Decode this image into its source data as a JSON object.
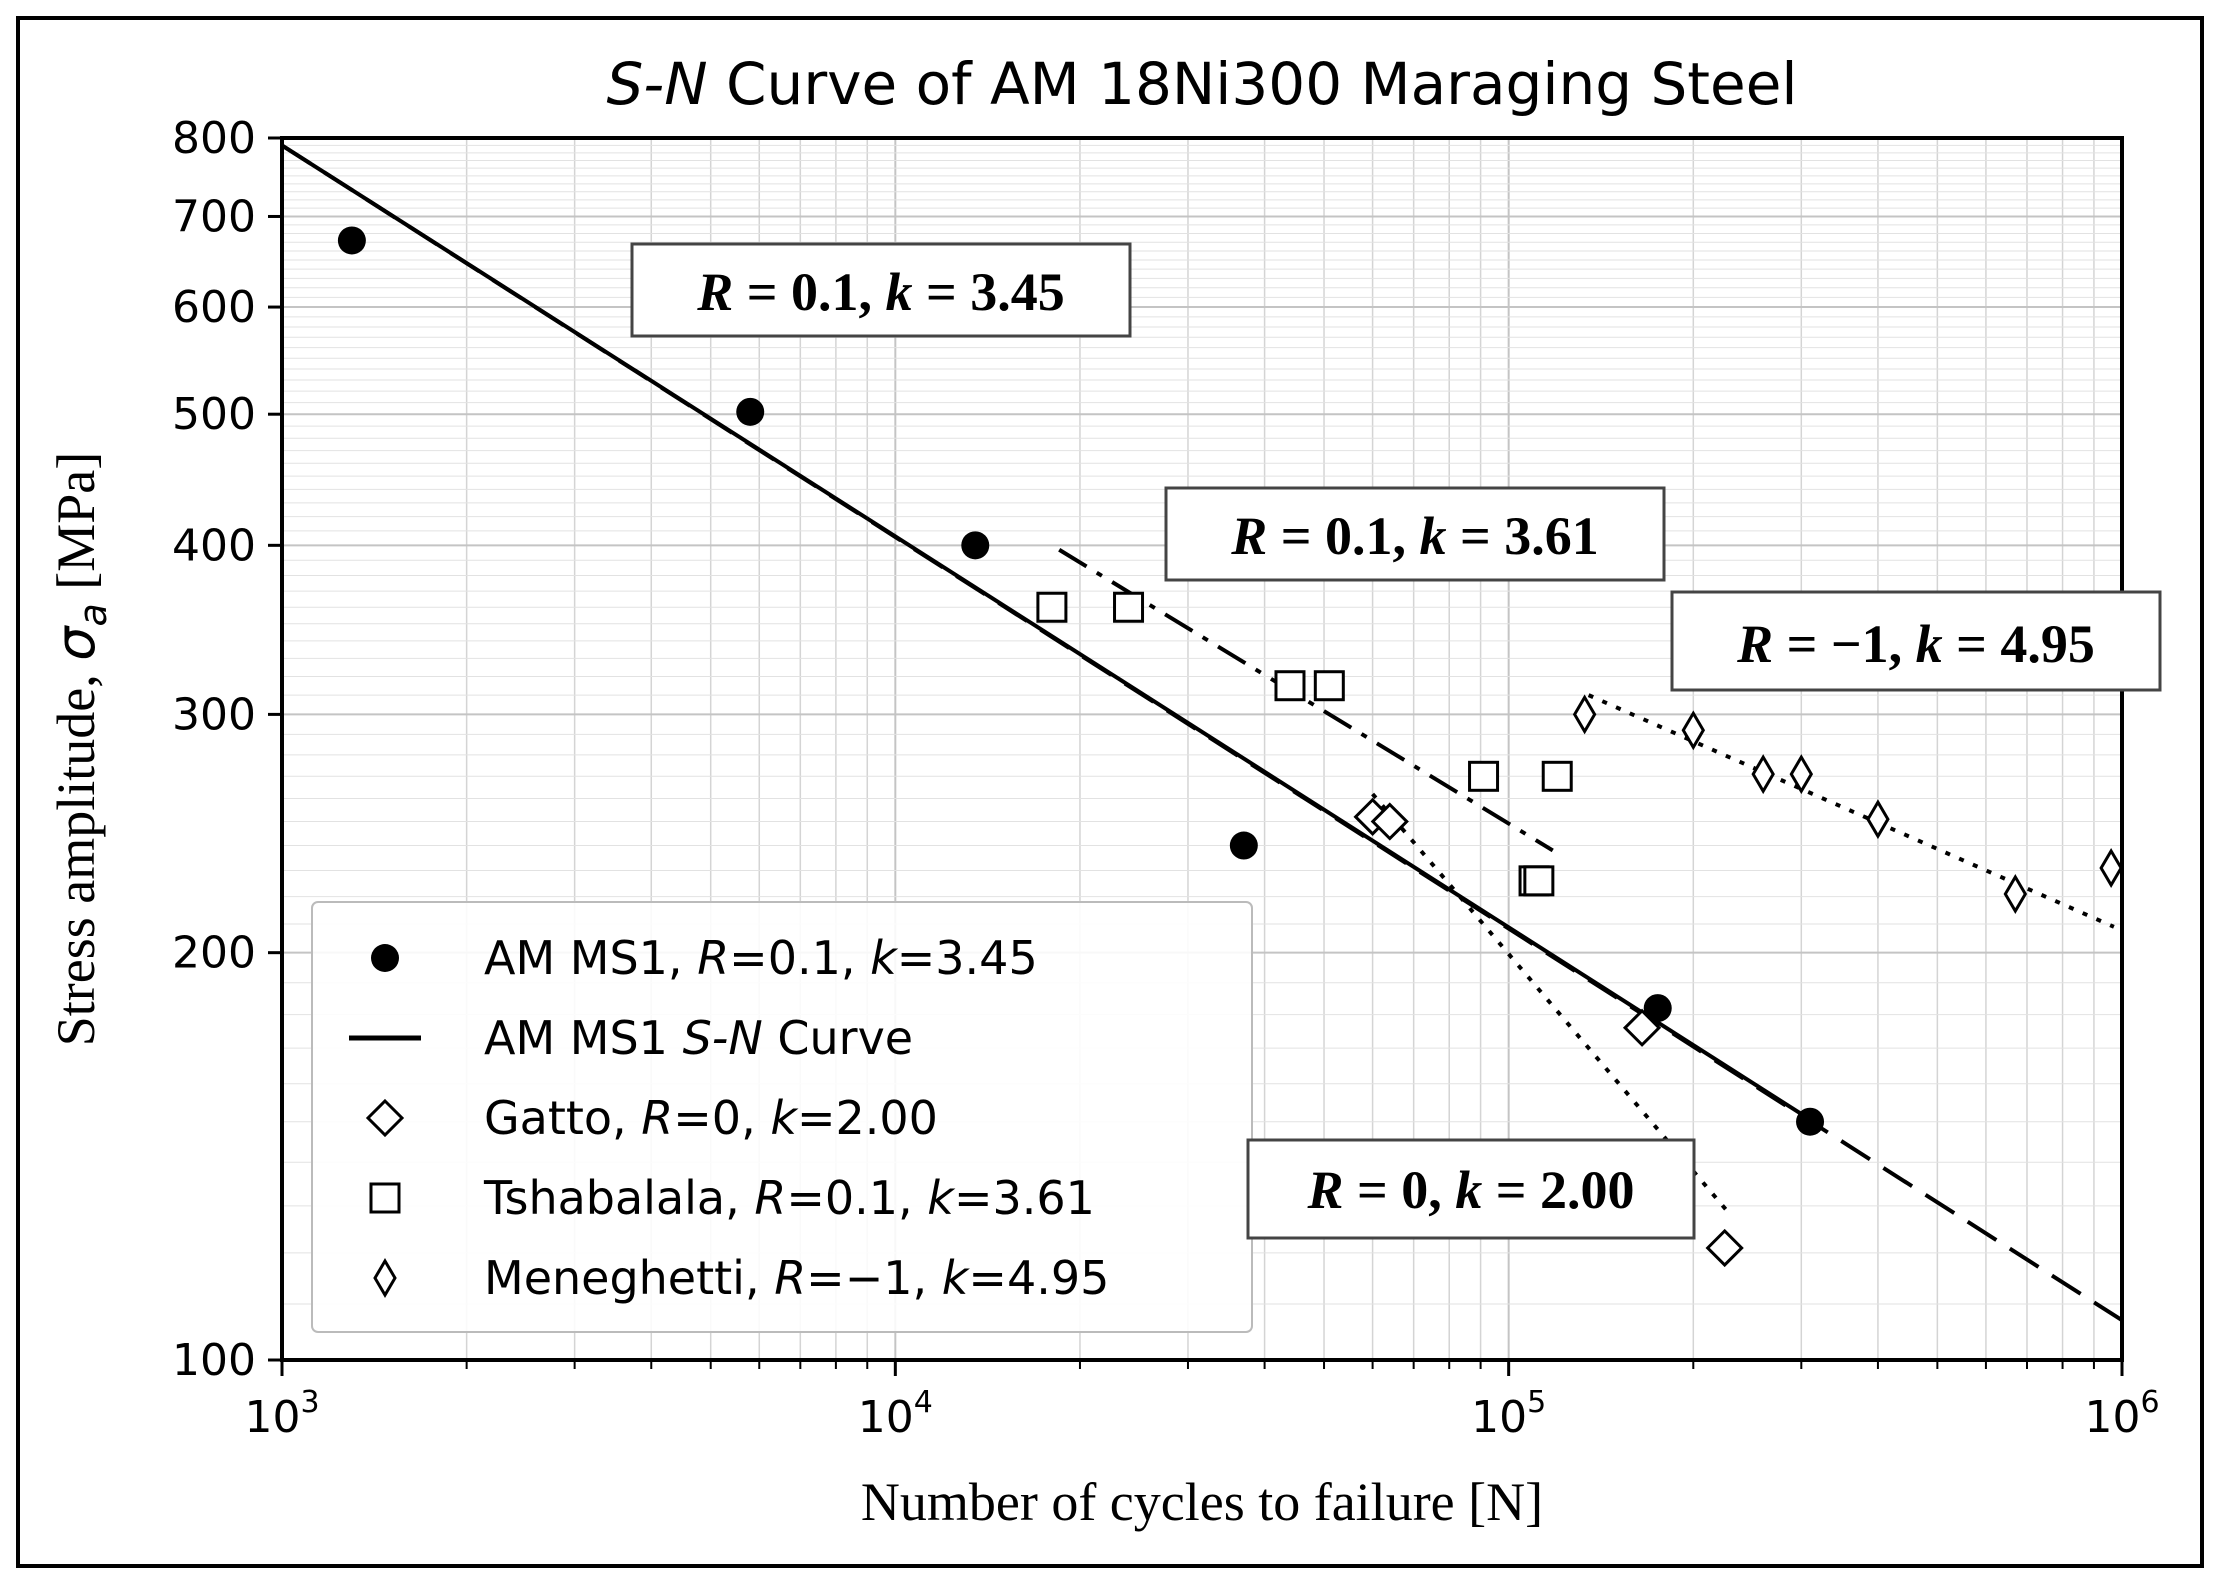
{
  "chart_data": {
    "type": "scatter",
    "title_italic": "S-N",
    "title_rest": " Curve of AM 18Ni300 Maraging Steel",
    "xlabel": "Number of cycles to failure [N]",
    "ylabel_prefix": "Stress amplitude, ",
    "ylabel_symbol": "σ",
    "ylabel_subscript": "a",
    "ylabel_suffix": " [MPa]",
    "x_scale": "log",
    "y_scale": "log",
    "xlim": [
      1000,
      1000000
    ],
    "ylim": [
      100,
      800
    ],
    "x_ticks": [
      {
        "value": 1000,
        "base": "10",
        "exp": "3"
      },
      {
        "value": 10000,
        "base": "10",
        "exp": "4"
      },
      {
        "value": 100000,
        "base": "10",
        "exp": "5"
      },
      {
        "value": 1000000,
        "base": "10",
        "exp": "6"
      }
    ],
    "y_ticks": [
      {
        "value": 100,
        "label": "100"
      },
      {
        "value": 200,
        "label": "200"
      },
      {
        "value": 300,
        "label": "300"
      },
      {
        "value": 400,
        "label": "400"
      },
      {
        "value": 500,
        "label": "500"
      },
      {
        "value": 600,
        "label": "600"
      },
      {
        "value": 700,
        "label": "700"
      },
      {
        "value": 800,
        "label": "800"
      }
    ],
    "grid": true,
    "legend_position": "bottom-left",
    "series": [
      {
        "name": "AM MS1, R=0.1, k=3.45",
        "marker": "filled-circle",
        "legend_parts": [
          [
            "AM MS1, ",
            false
          ],
          [
            "R",
            true
          ],
          [
            "=0.1, ",
            false
          ],
          [
            "k",
            true
          ],
          [
            "=3.45",
            false
          ]
        ],
        "x": [
          1300,
          5800,
          13500,
          37000,
          175000,
          310000
        ],
        "y": [
          672,
          502,
          400,
          240,
          182,
          150
        ]
      },
      {
        "name": "AM MS1 S-N Curve",
        "marker": "solid-line",
        "legend_parts": [
          [
            "AM MS1 ",
            false
          ],
          [
            "S-N",
            true
          ],
          [
            " Curve",
            false
          ]
        ],
        "x": [
          1000,
          300000
        ],
        "y": [
          790,
          152
        ],
        "extension": {
          "style": "dashed",
          "x": [
            1000,
            1000000
          ],
          "y": [
            790,
            107
          ]
        }
      },
      {
        "name": "Gatto, R=0, k=2.00",
        "marker": "open-diamond",
        "legend_parts": [
          [
            "Gatto, ",
            false
          ],
          [
            "R",
            true
          ],
          [
            "=0, ",
            false
          ],
          [
            "k",
            true
          ],
          [
            "=2.00",
            false
          ]
        ],
        "x": [
          60000,
          64000,
          165000,
          225000
        ],
        "y": [
          252,
          250,
          176,
          121
        ],
        "fit": {
          "style": "dotted",
          "x": [
            60000,
            230000
          ],
          "y": [
            262,
            128
          ]
        }
      },
      {
        "name": "Tshabalala, R=0.1, k=3.61",
        "marker": "open-square",
        "legend_parts": [
          [
            "Tshabalala, ",
            false
          ],
          [
            "R",
            true
          ],
          [
            "=0.1, ",
            false
          ],
          [
            "k",
            true
          ],
          [
            "=3.61",
            false
          ]
        ],
        "x": [
          18000,
          24000,
          44000,
          51000,
          91000,
          120000,
          110000,
          112000
        ],
        "y": [
          360,
          360,
          315,
          315,
          270,
          270,
          226,
          226
        ],
        "fit": {
          "style": "dash-dot",
          "x": [
            18500,
            118000
          ],
          "y": [
            397,
            238
          ]
        }
      },
      {
        "name": "Meneghetti, R=−1, k=4.95",
        "marker": "thin-diamond",
        "legend_parts": [
          [
            "Meneghetti, ",
            false
          ],
          [
            "R",
            true
          ],
          [
            "=−1, ",
            false
          ],
          [
            "k",
            true
          ],
          [
            "=4.95",
            false
          ]
        ],
        "x": [
          133000,
          200000,
          260000,
          300000,
          400000,
          670000,
          960000
        ],
        "y": [
          300,
          292,
          271,
          271,
          251,
          221,
          231
        ],
        "fit": {
          "style": "dotted",
          "x": [
            135000,
            970000
          ],
          "y": [
            310,
            209
          ]
        }
      }
    ],
    "annotations": [
      {
        "name": "annotation-ms1",
        "parts": [
          [
            "R",
            true
          ],
          [
            " = 0.1, ",
            false
          ],
          [
            "k",
            true
          ],
          [
            " = 3.45",
            false
          ]
        ]
      },
      {
        "name": "annotation-tshabalala",
        "parts": [
          [
            "R",
            true
          ],
          [
            " = 0.1, ",
            false
          ],
          [
            "k",
            true
          ],
          [
            " = 3.61",
            false
          ]
        ]
      },
      {
        "name": "annotation-meneghetti",
        "parts": [
          [
            "R",
            true
          ],
          [
            " = −1, ",
            false
          ],
          [
            "k",
            true
          ],
          [
            " = 4.95",
            false
          ]
        ]
      },
      {
        "name": "annotation-gatto",
        "parts": [
          [
            "R",
            true
          ],
          [
            " = 0, ",
            false
          ],
          [
            "k",
            true
          ],
          [
            " = 2.00",
            false
          ]
        ]
      }
    ]
  }
}
